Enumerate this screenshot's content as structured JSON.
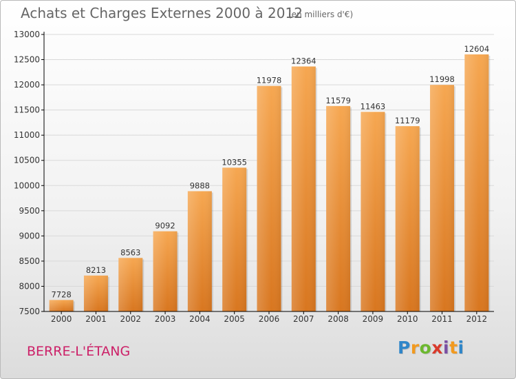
{
  "header": {
    "title": "Achats et Charges Externes 2000 à 2012",
    "subtitle": "(en milliers d'€)"
  },
  "footer": {
    "commune": "BERRE-L'ÉTANG",
    "logo_letters": [
      "P",
      "r",
      "o",
      "x",
      "i",
      "t",
      "i"
    ],
    "logo_colors": [
      "#2f86c9",
      "#f29a1f",
      "#6cb82f",
      "#d93a2b",
      "#7a4fa3",
      "#f29a1f",
      "#2f86c9"
    ]
  },
  "colors": {
    "bar_top": "#f6a751",
    "bar_bottom": "#d8761f",
    "axis": "#000000",
    "grid": "#d9d9d9"
  },
  "chart_data": {
    "type": "bar",
    "categories": [
      "2000",
      "2001",
      "2002",
      "2003",
      "2004",
      "2005",
      "2006",
      "2007",
      "2008",
      "2009",
      "2010",
      "2011",
      "2012"
    ],
    "values": [
      7728,
      8213,
      8563,
      9092,
      9888,
      10355,
      11978,
      12364,
      11579,
      11463,
      11179,
      11998,
      12604
    ],
    "yticks": [
      7500,
      8000,
      8500,
      9000,
      9500,
      10000,
      10500,
      11000,
      11500,
      12000,
      12500,
      13000
    ],
    "ylim": [
      7500,
      13000
    ],
    "grid": true
  }
}
